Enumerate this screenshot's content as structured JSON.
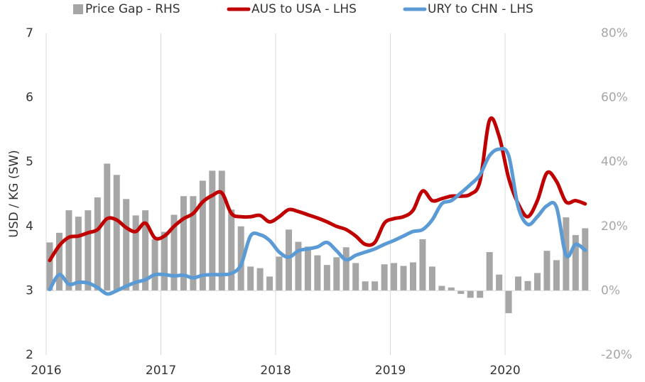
{
  "chart_data": {
    "type": "bar-line",
    "y_label": "USD / KG (SW)",
    "categories": [
      "2016",
      null,
      null,
      null,
      null,
      null,
      null,
      null,
      null,
      null,
      null,
      null,
      "2017",
      null,
      null,
      null,
      null,
      null,
      null,
      null,
      null,
      null,
      null,
      null,
      "2018",
      null,
      null,
      null,
      null,
      null,
      null,
      null,
      null,
      null,
      null,
      null,
      "2019",
      null,
      null,
      null,
      null,
      null,
      null,
      null,
      null,
      null,
      null,
      null,
      "2020",
      null,
      null,
      null,
      null,
      null,
      null,
      null,
      null
    ],
    "series": [
      {
        "name": "Price Gap - RHS",
        "type": "bar",
        "axis": "y2",
        "color": "#a6a6a6",
        "values": [
          15,
          18,
          25,
          23,
          25,
          29,
          39.5,
          36,
          28.5,
          23.4,
          25,
          16,
          18.3,
          23.6,
          29.4,
          29.4,
          34.2,
          37.3,
          37.3,
          25.2,
          20,
          7.5,
          7,
          4.4,
          10.6,
          19,
          15.2,
          13.7,
          11,
          8,
          10.4,
          13.5,
          8.6,
          2.9,
          2.9,
          8.2,
          8.6,
          7.7,
          8.8,
          16,
          7.5,
          1.5,
          1,
          -1,
          -2.2,
          -2.2,
          12,
          5,
          -7,
          4.4,
          3,
          5.5,
          12.4,
          9.5,
          22.8,
          17.3,
          19.4
        ]
      },
      {
        "name": "AUS to USA - LHS",
        "type": "line",
        "axis": "y",
        "color": "#c00000",
        "values": [
          3.47,
          3.7,
          3.83,
          3.85,
          3.9,
          3.95,
          4.12,
          4.1,
          3.98,
          3.92,
          4.05,
          3.82,
          3.85,
          4.0,
          4.12,
          4.2,
          4.38,
          4.48,
          4.52,
          4.2,
          4.15,
          4.15,
          4.17,
          4.07,
          4.15,
          4.26,
          4.23,
          4.18,
          4.13,
          4.07,
          4.0,
          3.95,
          3.85,
          3.72,
          3.75,
          4.05,
          4.12,
          4.15,
          4.25,
          4.55,
          4.4,
          4.43,
          4.47,
          4.47,
          4.5,
          4.7,
          5.65,
          5.4,
          4.75,
          4.35,
          4.15,
          4.4,
          4.83,
          4.7,
          4.38,
          4.4,
          4.35
        ]
      },
      {
        "name": "URY to CHN - LHS",
        "type": "line",
        "axis": "y",
        "color": "#5b9bd5",
        "values": [
          3.02,
          3.25,
          3.1,
          3.13,
          3.12,
          3.05,
          2.95,
          3.0,
          3.07,
          3.13,
          3.17,
          3.25,
          3.25,
          3.23,
          3.24,
          3.2,
          3.24,
          3.25,
          3.25,
          3.27,
          3.4,
          3.85,
          3.87,
          3.78,
          3.6,
          3.52,
          3.62,
          3.65,
          3.68,
          3.75,
          3.62,
          3.48,
          3.55,
          3.6,
          3.65,
          3.72,
          3.78,
          3.85,
          3.92,
          3.95,
          4.1,
          4.35,
          4.4,
          4.52,
          4.65,
          4.8,
          5.1,
          5.2,
          5.1,
          4.3,
          4.03,
          4.15,
          4.32,
          4.3,
          3.55,
          3.72,
          3.63
        ]
      }
    ],
    "ylim": [
      2,
      7
    ],
    "yticks": [
      2,
      3,
      4,
      5,
      6,
      7
    ],
    "y2lim": [
      -20,
      80
    ],
    "y2ticks": [
      {
        "value": -20,
        "label": "-20%"
      },
      {
        "value": 0,
        "label": "0%"
      },
      {
        "value": 20,
        "label": "20%"
      },
      {
        "value": 40,
        "label": "40%"
      },
      {
        "value": 60,
        "label": "60%"
      },
      {
        "value": 80,
        "label": "80%"
      }
    ],
    "grid": true
  }
}
